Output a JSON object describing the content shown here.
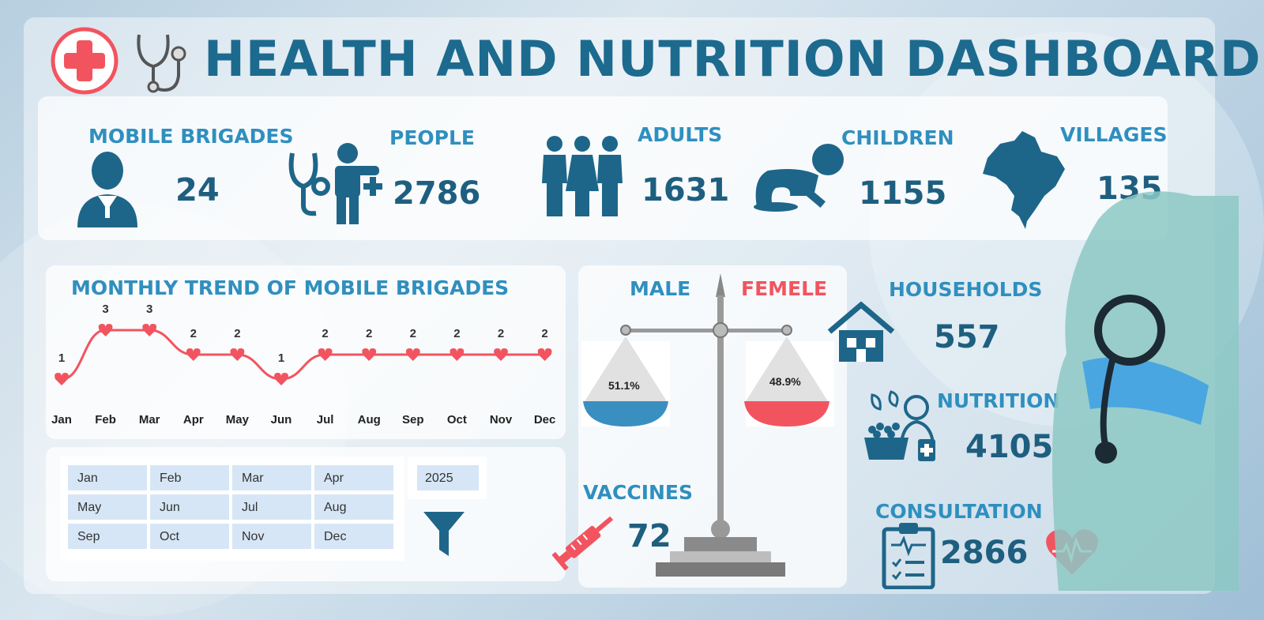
{
  "header": {
    "title": "HEALTH AND NUTRITION DASHBOARD"
  },
  "kpis": {
    "mobile_brigades": {
      "label": "MOBILE BRIGADES",
      "value": "24"
    },
    "people": {
      "label": "PEOPLE",
      "value": "2786"
    },
    "adults": {
      "label": "ADULTS",
      "value": "1631"
    },
    "children": {
      "label": "CHILDREN",
      "value": "1155"
    },
    "villages": {
      "label": "VILLAGES",
      "value": "135"
    },
    "households": {
      "label": "HOUSEHOLDS",
      "value": "557"
    },
    "nutrition": {
      "label": "NUTRITION",
      "value": "4105"
    },
    "vaccines": {
      "label": "VACCINES",
      "value": "72"
    },
    "consultation": {
      "label": "CONSULTATION",
      "value": "2866"
    }
  },
  "gender": {
    "male_label": "MALE",
    "female_label": "FEMELE",
    "male_pct": "51.1%",
    "female_pct": "48.9%",
    "male_color": "#3a8fc1",
    "female_color": "#f2545f"
  },
  "slicer": {
    "months": [
      "Jan",
      "Feb",
      "Mar",
      "Apr",
      "May",
      "Jun",
      "Jul",
      "Aug",
      "Sep",
      "Oct",
      "Nov",
      "Dec"
    ],
    "year": "2025"
  },
  "icons": [
    "plus-cross-icon",
    "stethoscope-icon",
    "doctor-icon",
    "person-stethoscope-icon",
    "group-icon",
    "crawling-baby-icon",
    "brazil-map-icon",
    "house-icon",
    "nutrition-basket-icon",
    "syringe-icon",
    "clipboard-icon",
    "heart-pulse-icon",
    "filter-icon",
    "scale-icon"
  ],
  "colors": {
    "accent": "#2f8fbf",
    "value": "#1e5f80",
    "line": "#f2545f"
  },
  "chart_data": {
    "type": "line",
    "title": "MONTHLY TREND OF MOBILE BRIGADES",
    "categories": [
      "Jan",
      "Feb",
      "Mar",
      "Apr",
      "May",
      "Jun",
      "Jul",
      "Aug",
      "Sep",
      "Oct",
      "Nov",
      "Dec"
    ],
    "values": [
      1,
      3,
      3,
      2,
      2,
      1,
      2,
      2,
      2,
      2,
      2,
      2
    ],
    "ylim": [
      0,
      3
    ],
    "grid": false,
    "data_labels": true
  }
}
